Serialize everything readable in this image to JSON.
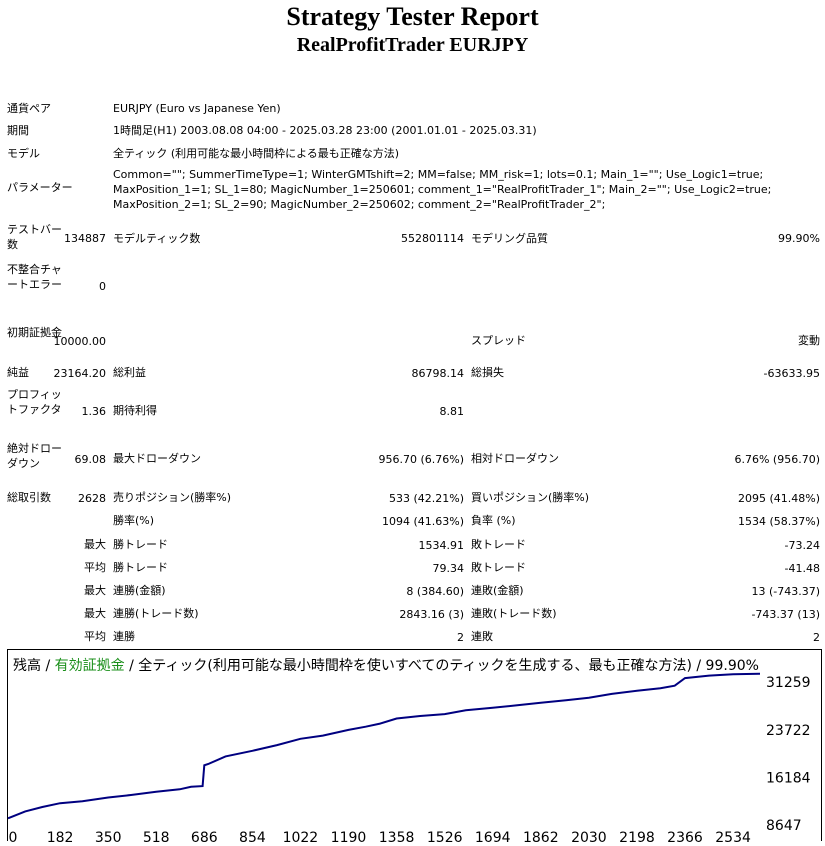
{
  "header": {
    "title": "Strategy Tester Report",
    "subtitle": "RealProfitTrader  EURJPY"
  },
  "info": {
    "pair_label": "通貨ペア",
    "pair_value": "EURJPY (Euro vs Japanese Yen)",
    "period_label": "期間",
    "period_value": "1時間足(H1) 2003.08.08 04:00 - 2025.03.28 23:00 (2001.01.01 - 2025.03.31)",
    "model_label": "モデル",
    "model_value": "全ティック (利用可能な最小時間枠による最も正確な方法)",
    "params_label": "パラメーター",
    "params_value": "Common=\"\"; SummerTimeType=1; WinterGMTshift=2; MM=false; MM_risk=1; lots=0.1; Main_1=\"\"; Use_Logic1=true; MaxPosition_1=1; SL_1=80; MagicNumber_1=250601; comment_1=\"RealProfitTrader_1\"; Main_2=\"\"; Use_Logic2=true; MaxPosition_2=1; SL_2=90; MagicNumber_2=250602; comment_2=\"RealProfitTrader_2\";"
  },
  "stats": {
    "bars_label": "テストバー数",
    "bars_value": "134887",
    "ticks_label": "モデルティック数",
    "ticks_value": "552801114",
    "quality_label": "モデリング品質",
    "quality_value": "99.90%",
    "mismatch_label": "不整合チャートエラー",
    "mismatch_value": "0",
    "deposit_label": "初期証拠金",
    "deposit_value": "10000.00",
    "spread_label": "スプレッド",
    "spread_value": "変動",
    "net_label": "純益",
    "net_value": "23164.20",
    "gross_profit_label": "総利益",
    "gross_profit_value": "86798.14",
    "gross_loss_label": "総損失",
    "gross_loss_value": "-63633.95",
    "pf_label": "プロフィットファクタ",
    "pf_value": "1.36",
    "expected_label": "期待利得",
    "expected_value": "8.81",
    "abs_dd_label": "絶対ドローダウン",
    "abs_dd_value": "69.08",
    "max_dd_label": "最大ドローダウン",
    "max_dd_value": "956.70 (6.76%)",
    "rel_dd_label": "相対ドローダウン",
    "rel_dd_value": "6.76% (956.70)",
    "trades_label": "総取引数",
    "trades_value": "2628",
    "short_label": "売りポジション(勝率%)",
    "short_value": "533 (42.21%)",
    "long_label": "買いポジション(勝率%)",
    "long_value": "2095 (41.48%)",
    "winrate_label": "勝率(%)",
    "winrate_value": "1094 (41.63%)",
    "lossrate_label": "負率 (%)",
    "lossrate_value": "1534 (58.37%)",
    "max1": "最大",
    "largest_win_label": "勝トレード",
    "largest_win_value": "1534.91",
    "largest_loss_label": "敗トレード",
    "largest_loss_value": "-73.24",
    "avg1": "平均",
    "avg_win_label": "勝トレード",
    "avg_win_value": "79.34",
    "avg_loss_label": "敗トレード",
    "avg_loss_value": "-41.48",
    "max2": "最大",
    "cons_wins_label": "連勝(金額)",
    "cons_wins_value": "8 (384.60)",
    "cons_losses_label": "連敗(金額)",
    "cons_losses_value": "13 (-743.37)",
    "max3": "最大",
    "cons_profit_label": "連勝(トレード数)",
    "cons_profit_value": "2843.16 (3)",
    "cons_loss_label": "連敗(トレード数)",
    "cons_loss_value": "-743.37 (13)",
    "avg2": "平均",
    "avg_cons_wins_label": "連勝",
    "avg_cons_wins_value": "2",
    "avg_cons_losses_label": "連敗",
    "avg_cons_losses_value": "2"
  },
  "chart_header": {
    "balance": "残高",
    "sep1": " / ",
    "equity": "有効証拠金",
    "rest": " / 全ティック(利用可能な最小時間枠を使いすべてのティックを生成する、最も正確な方法) / 99.90%"
  },
  "colors": {
    "line": "#000080",
    "equity_label": "#1a8f1a"
  },
  "chart_data": {
    "type": "line",
    "x_ticks": [
      "0",
      "182",
      "350",
      "518",
      "686",
      "854",
      "1022",
      "1190",
      "1358",
      "1526",
      "1694",
      "1862",
      "2030",
      "2198",
      "2366",
      "2534"
    ],
    "y_ticks": [
      "31259",
      "23722",
      "16184",
      "8647"
    ],
    "xlim": [
      0,
      2628
    ],
    "ylim": [
      8647,
      33500
    ],
    "series": [
      {
        "x": [
          0,
          60,
          120,
          182,
          260,
          350,
          430,
          518,
          600,
          640,
          680,
          686,
          700,
          760,
          854,
          940,
          1022,
          1100,
          1190,
          1250,
          1300,
          1358,
          1440,
          1526,
          1600,
          1694,
          1780,
          1862,
          1950,
          2030,
          2110,
          2198,
          2280,
          2330,
          2366,
          2450,
          2534,
          2628
        ],
        "y": [
          9700,
          10800,
          11500,
          12100,
          12400,
          13000,
          13400,
          13900,
          14300,
          14700,
          14800,
          18100,
          18300,
          19500,
          20400,
          21300,
          22300,
          22800,
          23700,
          24200,
          24700,
          25500,
          25900,
          26200,
          26800,
          27200,
          27600,
          28000,
          28400,
          28800,
          29400,
          29900,
          30300,
          30700,
          31900,
          32300,
          32500,
          32600
        ]
      }
    ]
  }
}
